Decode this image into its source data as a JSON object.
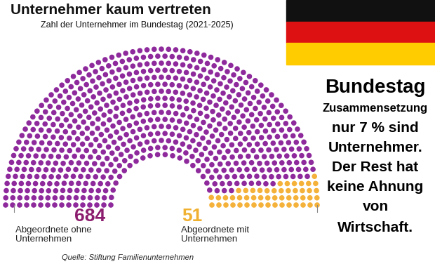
{
  "chart_data": {
    "type": "parliament",
    "title": "Unternehmer kaum vertreten",
    "subtitle": "Zahl der Unternehmer im Bundestag (2021-2025)",
    "series": [
      {
        "name": "Abgeordnete ohne Unternehmen",
        "value": 684,
        "color": "#8e2a9c"
      },
      {
        "name": "Abgeordnete mit Unternehmen",
        "value": 51,
        "color": "#f5b23a"
      }
    ],
    "value_label_colors": [
      "#8c1d6e",
      "#f0b030"
    ],
    "data_labels": true,
    "source": "Quelle: Stiftung Familienunternehmen",
    "annotations": [
      "Bundestag",
      "Zusammensetzung",
      "nur 7 % sind",
      "Unternehmer.",
      "Der Rest hat",
      "keine Ahnung",
      "von",
      "Wirtschaft."
    ]
  }
}
